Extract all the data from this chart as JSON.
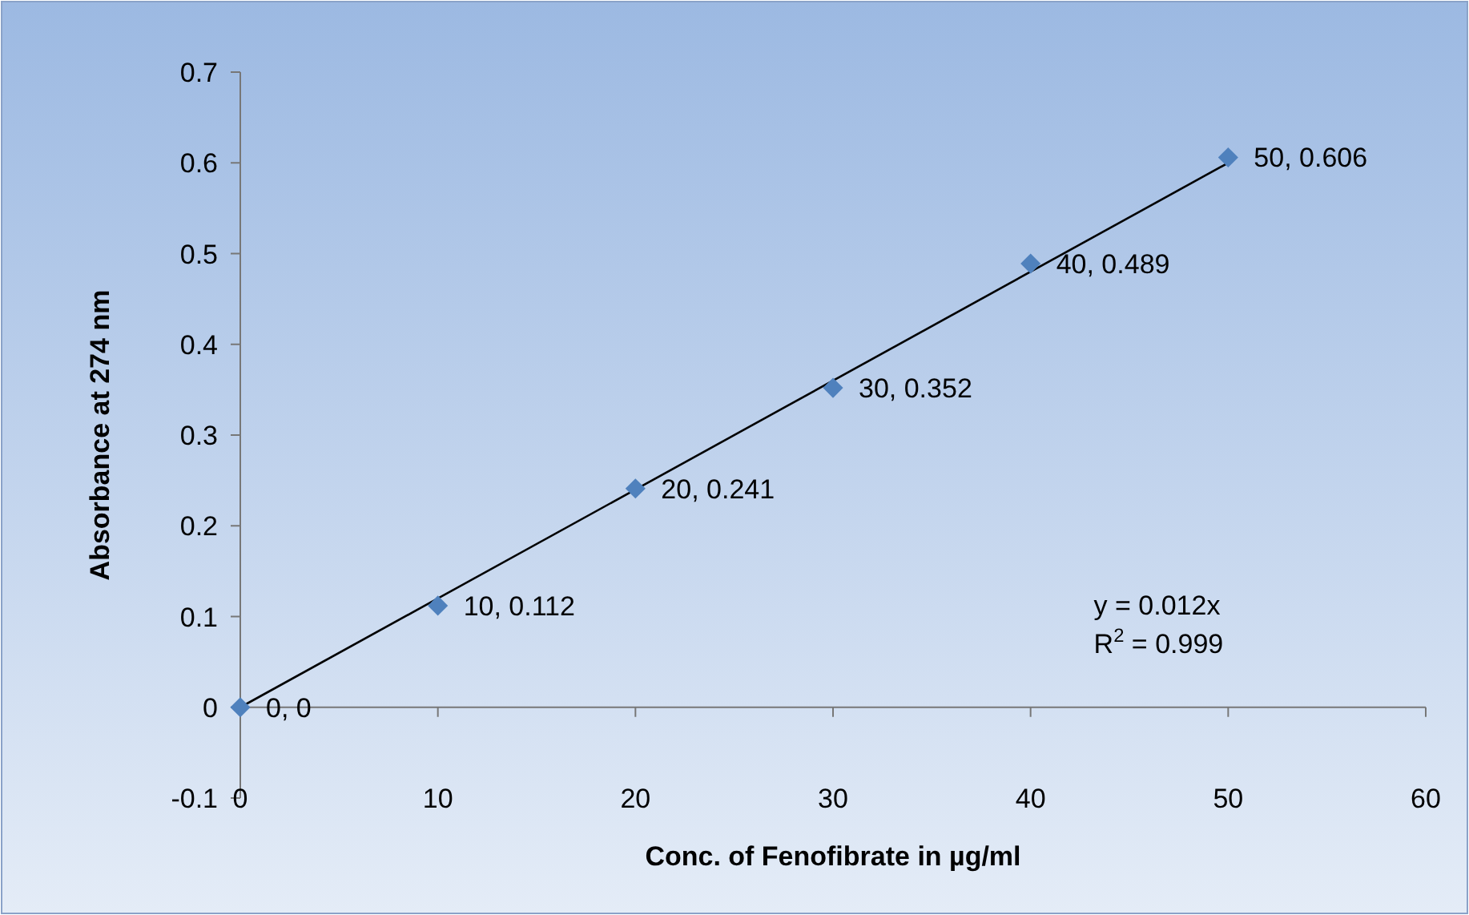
{
  "chart_data": {
    "type": "scatter",
    "xlabel": "Conc. of Fenofibrate in µg/ml",
    "ylabel": "Absorbance at 274 nm",
    "xlim": [
      0,
      60
    ],
    "xticks": [
      0,
      10,
      20,
      30,
      40,
      50,
      60
    ],
    "ylim": [
      -0.1,
      0.7
    ],
    "yticks": [
      -0.1,
      0,
      0.1,
      0.2,
      0.3,
      0.4,
      0.5,
      0.6,
      0.7
    ],
    "series": [
      {
        "color": "#4f81bd",
        "marker": "diamond",
        "x": [
          0,
          10,
          20,
          30,
          40,
          50
        ],
        "values": [
          0,
          0.112,
          0.241,
          0.352,
          0.489,
          0.606
        ],
        "value_labels": [
          "0, 0",
          "10, 0.112",
          "20, 0.241",
          "30, 0.352",
          "40, 0.489",
          "50, 0.606"
        ]
      },
      {
        "type": "line",
        "color": "#000000",
        "x": [
          0,
          50
        ],
        "values": [
          0,
          0.6
        ]
      }
    ],
    "annotations": [
      "y = 0.012x",
      "R$^{2}$ = 0.999"
    ]
  }
}
